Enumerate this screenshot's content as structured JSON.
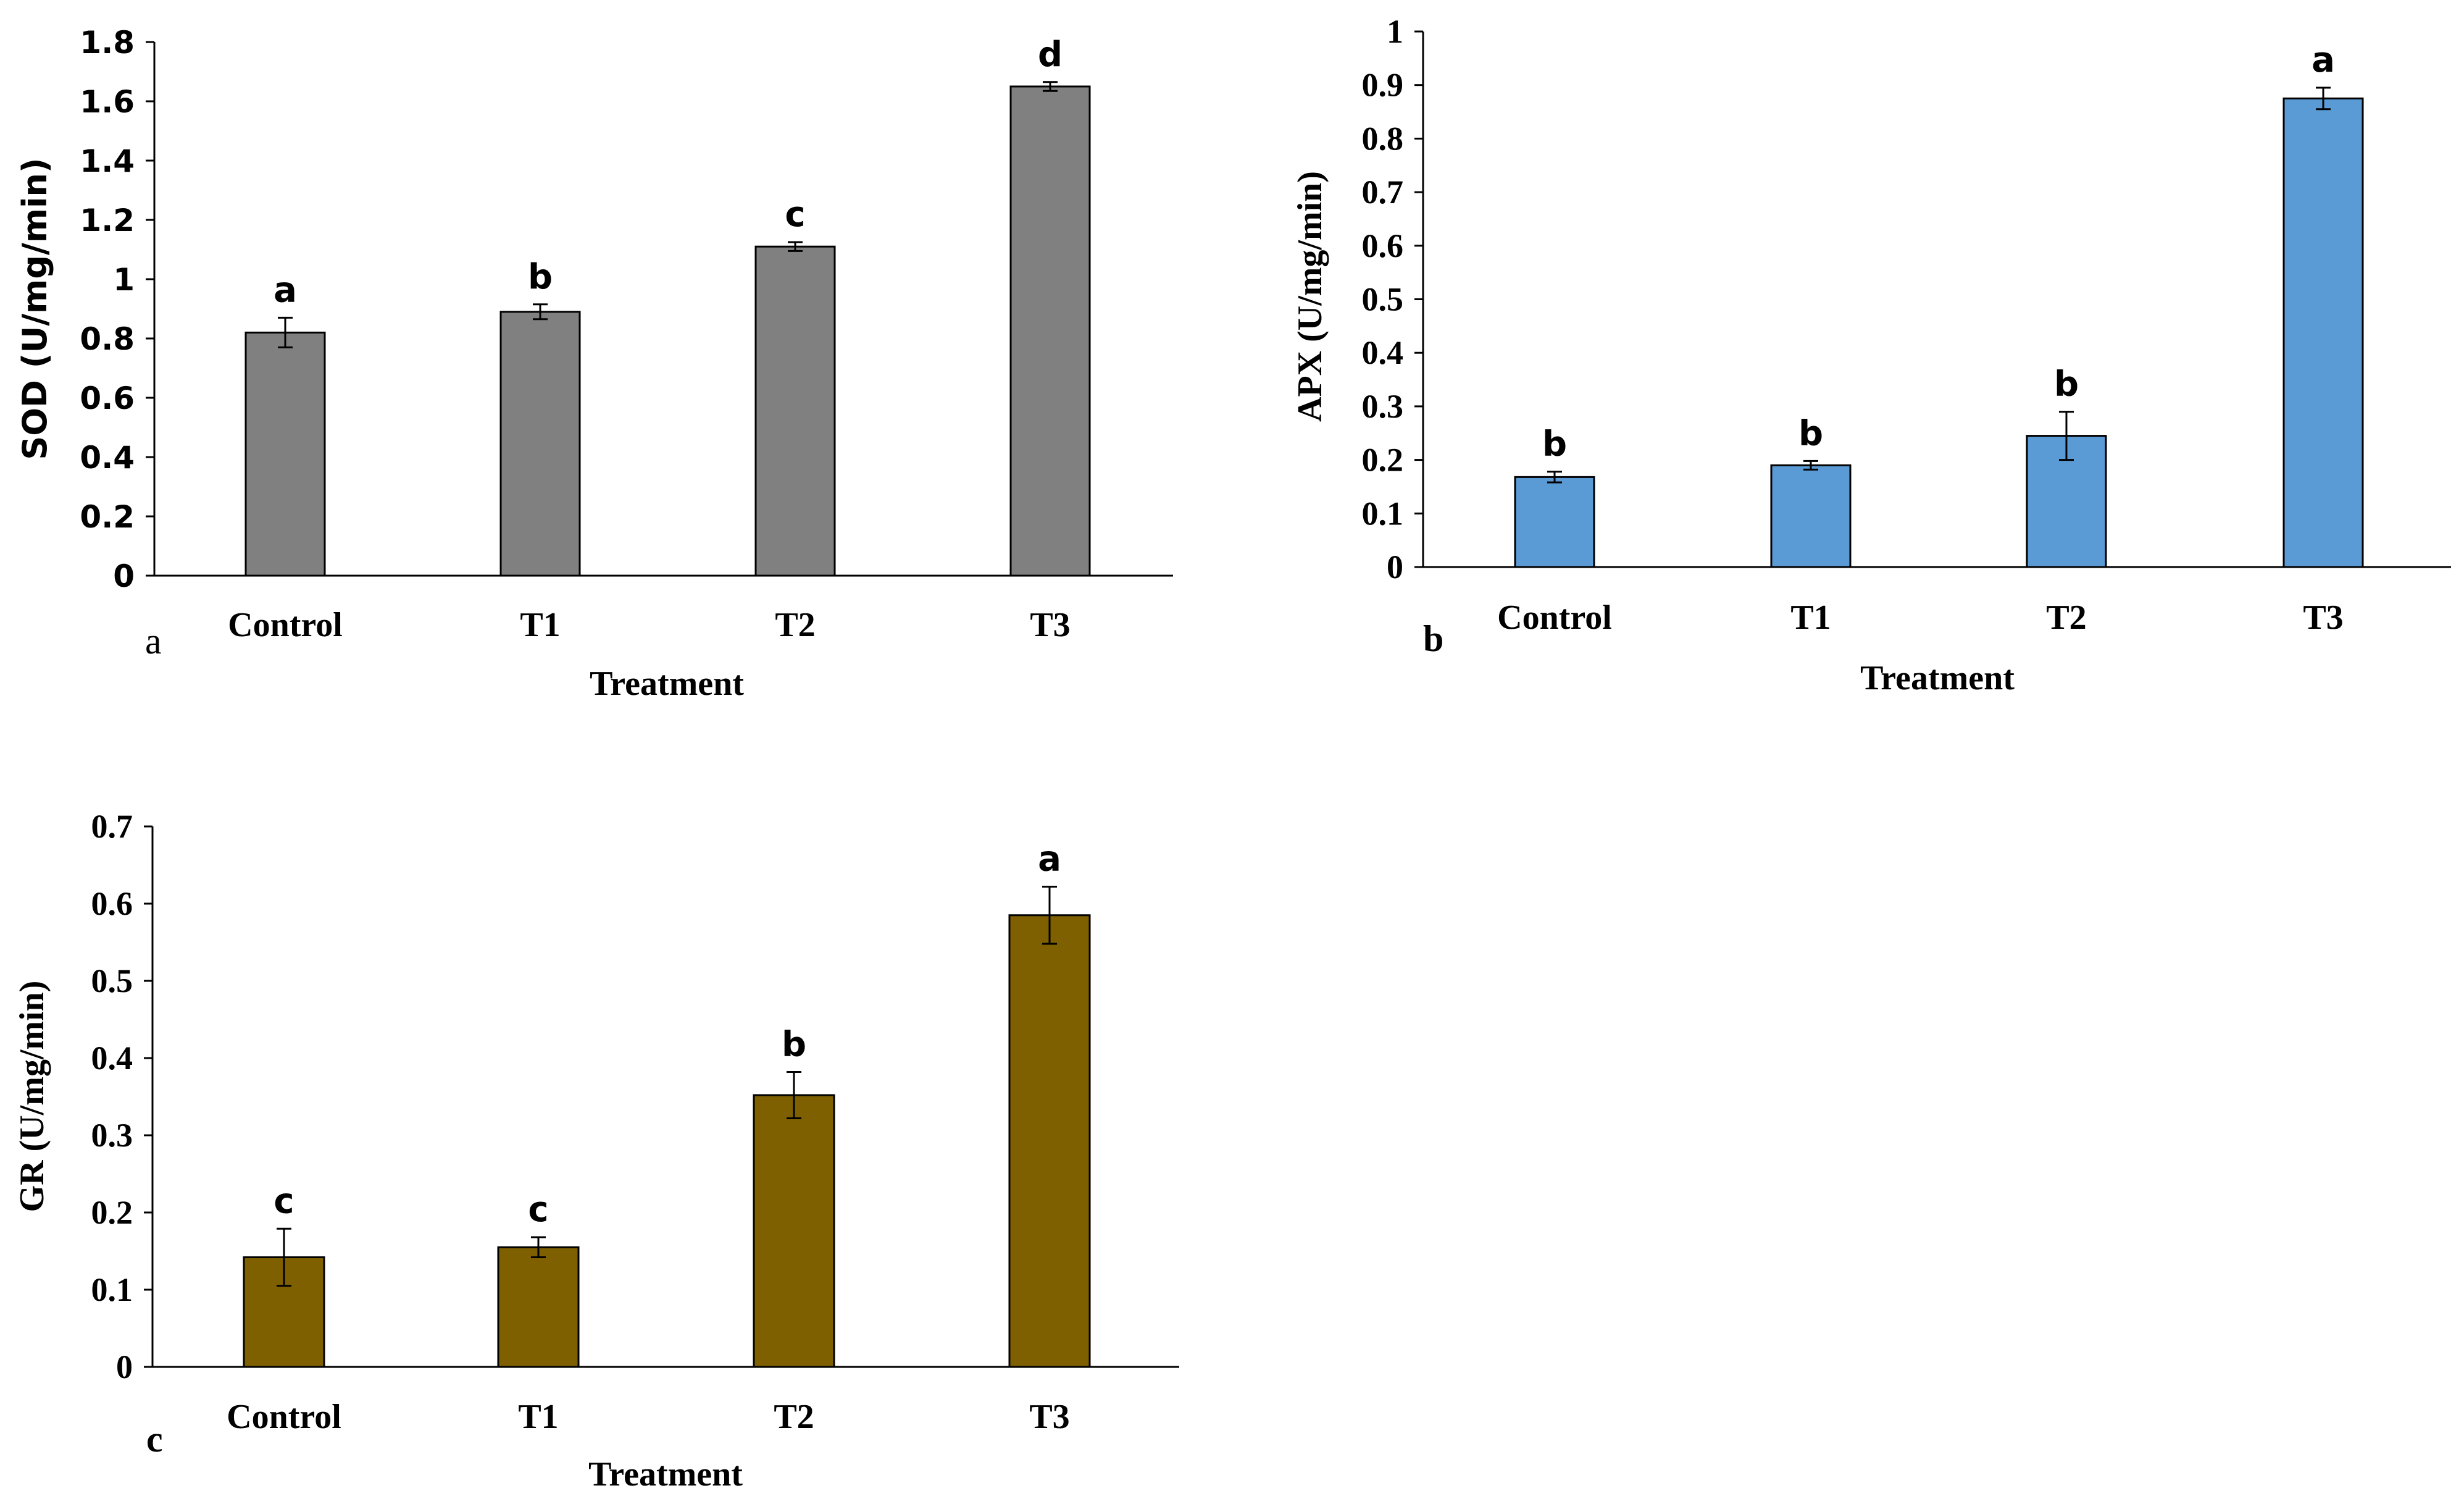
{
  "chart_data": [
    {
      "type": "bar",
      "panel": "a",
      "title": "",
      "categories": [
        "Control",
        "T1",
        "T2",
        "T3"
      ],
      "values": [
        0.82,
        0.89,
        1.11,
        1.65
      ],
      "errors": [
        0.05,
        0.025,
        0.015,
        0.015
      ],
      "letters": [
        "a",
        "b",
        "c",
        "d"
      ],
      "xlabel": "Treatment",
      "ylabel": "SOD (U/mg/min)",
      "ylim": [
        0,
        1.8
      ],
      "yticks": [
        "0",
        "0.2",
        "0.4",
        "0.6",
        "0.8",
        "1",
        "1.2",
        "1.4",
        "1.6",
        "1.8"
      ],
      "color": "#808080",
      "grid": false
    },
    {
      "type": "bar",
      "panel": "b",
      "title": "",
      "categories": [
        "Control",
        "T1",
        "T2",
        "T3"
      ],
      "values": [
        0.168,
        0.19,
        0.245,
        0.875
      ],
      "errors": [
        0.01,
        0.008,
        0.045,
        0.02
      ],
      "letters": [
        "b",
        "b",
        "b",
        "a"
      ],
      "xlabel": "Treatment",
      "ylabel": "APX (U/mg/min)",
      "ylim": [
        0,
        1
      ],
      "yticks": [
        "0",
        "0.1",
        "0.2",
        "0.3",
        "0.4",
        "0.5",
        "0.6",
        "0.7",
        "0.8",
        "0.9",
        "1"
      ],
      "color": "#5b9bd5",
      "grid": false
    },
    {
      "type": "bar",
      "panel": "c",
      "title": "",
      "categories": [
        "Control",
        "T1",
        "T2",
        "T3"
      ],
      "values": [
        0.142,
        0.155,
        0.352,
        0.585
      ],
      "errors": [
        0.037,
        0.013,
        0.03,
        0.037
      ],
      "letters": [
        "c",
        "c",
        "b",
        "a"
      ],
      "xlabel": "Treatment",
      "ylabel": "GR (U/mg/min)",
      "ylim": [
        0,
        0.7
      ],
      "yticks": [
        "0",
        "0.1",
        "0.2",
        "0.3",
        "0.4",
        "0.5",
        "0.6",
        "0.7"
      ],
      "color": "#7f6000",
      "grid": false
    }
  ]
}
